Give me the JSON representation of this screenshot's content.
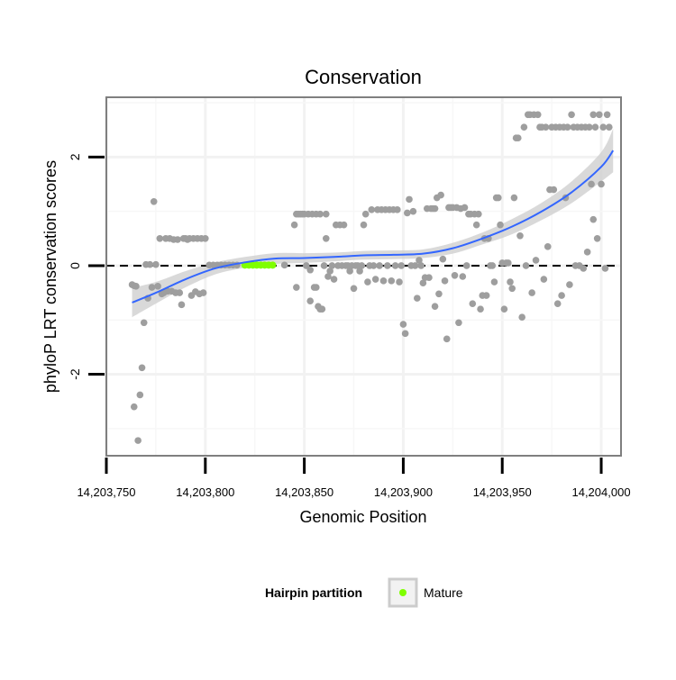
{
  "chart_data": {
    "type": "scatter",
    "title": "Conservation",
    "xlabel": "Genomic Position",
    "ylabel": "phyloP LRT conservation scores",
    "xlim": [
      14203750,
      14204010
    ],
    "ylim": [
      -3.5,
      3.1
    ],
    "x_ticks": [
      14203750,
      14203800,
      14203850,
      14203900,
      14203950,
      14204000
    ],
    "x_tick_labels": [
      "14,203,750",
      "14,203,800",
      "14,203,850",
      "14,203,900",
      "14,203,950",
      "14,204,000"
    ],
    "y_ticks": [
      -2,
      0,
      2
    ],
    "y_tick_labels": [
      "-2",
      "0",
      "2"
    ],
    "grid": true,
    "reference_line": {
      "y": 0,
      "style": "dashed"
    },
    "legend": {
      "title": "Hairpin partition",
      "position": "bottom",
      "entries": [
        {
          "label": "Mature",
          "color": "#7fff00"
        }
      ]
    },
    "colors": {
      "points": "#9e9e9e",
      "mature": "#7fff00",
      "smooth": "#3366ff",
      "ribbon": "#cccccc",
      "panel_border": "#7f7f7f"
    },
    "series": [
      {
        "name": "scores",
        "points": [
          [
            14203763,
            -0.35
          ],
          [
            14203764,
            -0.37
          ],
          [
            14203764,
            -2.6
          ],
          [
            14203765,
            -0.38
          ],
          [
            14203766,
            -3.22
          ],
          [
            14203767,
            -2.38
          ],
          [
            14203768,
            -1.88
          ],
          [
            14203769,
            -1.05
          ],
          [
            14203770,
            0.02
          ],
          [
            14203771,
            -0.6
          ],
          [
            14203772,
            0.02
          ],
          [
            14203773,
            -0.4
          ],
          [
            14203774,
            1.18
          ],
          [
            14203775,
            0.02
          ],
          [
            14203776,
            -0.38
          ],
          [
            14203777,
            0.5
          ],
          [
            14203778,
            -0.52
          ],
          [
            14203779,
            -0.5
          ],
          [
            14203780,
            0.5
          ],
          [
            14203781,
            -0.47
          ],
          [
            14203782,
            0.5
          ],
          [
            14203783,
            -0.47
          ],
          [
            14203784,
            0.48
          ],
          [
            14203785,
            -0.5
          ],
          [
            14203786,
            0.48
          ],
          [
            14203787,
            -0.5
          ],
          [
            14203788,
            -0.72
          ],
          [
            14203789,
            0.5
          ],
          [
            14203790,
            0.5
          ],
          [
            14203791,
            0.48
          ],
          [
            14203792,
            0.5
          ],
          [
            14203793,
            -0.55
          ],
          [
            14203794,
            0.5
          ],
          [
            14203795,
            -0.48
          ],
          [
            14203796,
            0.5
          ],
          [
            14203797,
            -0.52
          ],
          [
            14203798,
            0.5
          ],
          [
            14203799,
            -0.5
          ],
          [
            14203800,
            0.5
          ],
          [
            14203802,
            0.01
          ],
          [
            14203804,
            0.01
          ],
          [
            14203806,
            0.01
          ],
          [
            14203808,
            0.01
          ],
          [
            14203810,
            0.01
          ],
          [
            14203812,
            0.01
          ],
          [
            14203814,
            0.01
          ],
          [
            14203816,
            0.01
          ],
          [
            14203840,
            0.01
          ],
          [
            14203845,
            0.75
          ],
          [
            14203846,
            0.95
          ],
          [
            14203846,
            -0.4
          ],
          [
            14203847,
            0.95
          ],
          [
            14203848,
            0.95
          ],
          [
            14203849,
            0.95
          ],
          [
            14203850,
            0.95
          ],
          [
            14203851,
            0.0
          ],
          [
            14203852,
            0.95
          ],
          [
            14203853,
            -0.08
          ],
          [
            14203853,
            -0.65
          ],
          [
            14203854,
            0.95
          ],
          [
            14203855,
            -0.4
          ],
          [
            14203856,
            0.95
          ],
          [
            14203856,
            -0.4
          ],
          [
            14203857,
            -0.75
          ],
          [
            14203858,
            0.95
          ],
          [
            14203858,
            -0.8
          ],
          [
            14203859,
            -0.8
          ],
          [
            14203860,
            0.0
          ],
          [
            14203861,
            0.5
          ],
          [
            14203861,
            0.95
          ],
          [
            14203862,
            -0.2
          ],
          [
            14203863,
            -0.1
          ],
          [
            14203864,
            0.0
          ],
          [
            14203865,
            -0.25
          ],
          [
            14203866,
            0.75
          ],
          [
            14203867,
            0.0
          ],
          [
            14203868,
            0.75
          ],
          [
            14203869,
            0.0
          ],
          [
            14203870,
            0.75
          ],
          [
            14203871,
            0.0
          ],
          [
            14203872,
            0.0
          ],
          [
            14203873,
            -0.1
          ],
          [
            14203874,
            0.0
          ],
          [
            14203875,
            -0.42
          ],
          [
            14203876,
            0.0
          ],
          [
            14203877,
            0.0
          ],
          [
            14203878,
            -0.1
          ],
          [
            14203879,
            0.0
          ],
          [
            14203880,
            0.75
          ],
          [
            14203881,
            0.95
          ],
          [
            14203882,
            -0.3
          ],
          [
            14203883,
            0.0
          ],
          [
            14203884,
            1.03
          ],
          [
            14203885,
            0.0
          ],
          [
            14203886,
            -0.25
          ],
          [
            14203887,
            1.03
          ],
          [
            14203888,
            0.0
          ],
          [
            14203889,
            1.03
          ],
          [
            14203890,
            -0.28
          ],
          [
            14203891,
            1.03
          ],
          [
            14203892,
            0.0
          ],
          [
            14203893,
            1.03
          ],
          [
            14203894,
            -0.28
          ],
          [
            14203895,
            1.03
          ],
          [
            14203896,
            0.0
          ],
          [
            14203897,
            1.03
          ],
          [
            14203898,
            -0.3
          ],
          [
            14203899,
            0.0
          ],
          [
            14203900,
            -1.08
          ],
          [
            14203901,
            -1.25
          ],
          [
            14203902,
            0.97
          ],
          [
            14203903,
            1.22
          ],
          [
            14203904,
            0.0
          ],
          [
            14203905,
            1.0
          ],
          [
            14203906,
            0.0
          ],
          [
            14203907,
            -0.6
          ],
          [
            14203908,
            0.1
          ],
          [
            14203909,
            0.0
          ],
          [
            14203910,
            -0.32
          ],
          [
            14203911,
            -0.22
          ],
          [
            14203912,
            1.05
          ],
          [
            14203913,
            -0.22
          ],
          [
            14203914,
            1.05
          ],
          [
            14203915,
            1.05
          ],
          [
            14203916,
            1.05
          ],
          [
            14203916,
            -0.75
          ],
          [
            14203917,
            1.25
          ],
          [
            14203918,
            -0.52
          ],
          [
            14203919,
            1.3
          ],
          [
            14203920,
            0.12
          ],
          [
            14203921,
            -0.28
          ],
          [
            14203922,
            -1.35
          ],
          [
            14203923,
            1.07
          ],
          [
            14203924,
            1.07
          ],
          [
            14203925,
            1.07
          ],
          [
            14203926,
            -0.18
          ],
          [
            14203927,
            1.07
          ],
          [
            14203928,
            -1.05
          ],
          [
            14203929,
            1.05
          ],
          [
            14203930,
            -0.2
          ],
          [
            14203931,
            1.07
          ],
          [
            14203932,
            0.0
          ],
          [
            14203933,
            0.95
          ],
          [
            14203934,
            0.95
          ],
          [
            14203935,
            -0.7
          ],
          [
            14203936,
            0.95
          ],
          [
            14203937,
            0.75
          ],
          [
            14203938,
            0.95
          ],
          [
            14203939,
            -0.8
          ],
          [
            14203940,
            -0.55
          ],
          [
            14203941,
            0.5
          ],
          [
            14203942,
            -0.55
          ],
          [
            14203943,
            0.5
          ],
          [
            14203944,
            0.0
          ],
          [
            14203945,
            0.0
          ],
          [
            14203946,
            -0.3
          ],
          [
            14203947,
            1.25
          ],
          [
            14203948,
            1.25
          ],
          [
            14203949,
            0.75
          ],
          [
            14203950,
            0.05
          ],
          [
            14203951,
            -0.8
          ],
          [
            14203952,
            0.05
          ],
          [
            14203953,
            0.05
          ],
          [
            14203954,
            -0.3
          ],
          [
            14203955,
            -0.42
          ],
          [
            14203956,
            1.25
          ],
          [
            14203957,
            2.35
          ],
          [
            14203958,
            2.35
          ],
          [
            14203959,
            0.55
          ],
          [
            14203960,
            -0.95
          ],
          [
            14203961,
            2.55
          ],
          [
            14203962,
            0.0
          ],
          [
            14203963,
            2.78
          ],
          [
            14203964,
            2.78
          ],
          [
            14203965,
            -0.5
          ],
          [
            14203966,
            2.78
          ],
          [
            14203967,
            0.1
          ],
          [
            14203968,
            2.78
          ],
          [
            14203969,
            2.55
          ],
          [
            14203970,
            2.55
          ],
          [
            14203971,
            -0.25
          ],
          [
            14203972,
            2.55
          ],
          [
            14203973,
            0.35
          ],
          [
            14203974,
            1.4
          ],
          [
            14203975,
            2.55
          ],
          [
            14203976,
            1.4
          ],
          [
            14203977,
            2.55
          ],
          [
            14203978,
            -0.7
          ],
          [
            14203979,
            2.55
          ],
          [
            14203980,
            -0.55
          ],
          [
            14203981,
            2.55
          ],
          [
            14203982,
            1.25
          ],
          [
            14203983,
            2.55
          ],
          [
            14203984,
            -0.35
          ],
          [
            14203985,
            2.78
          ],
          [
            14203986,
            2.55
          ],
          [
            14203987,
            0.0
          ],
          [
            14203988,
            2.55
          ],
          [
            14203989,
            0.0
          ],
          [
            14203990,
            2.55
          ],
          [
            14203991,
            -0.05
          ],
          [
            14203992,
            2.55
          ],
          [
            14203993,
            0.25
          ],
          [
            14203994,
            2.55
          ],
          [
            14203995,
            1.5
          ],
          [
            14203996,
            0.85
          ],
          [
            14203996,
            2.78
          ],
          [
            14203997,
            2.55
          ],
          [
            14203998,
            0.5
          ],
          [
            14203999,
            2.78
          ],
          [
            14204000,
            1.5
          ],
          [
            14204001,
            2.55
          ],
          [
            14204002,
            -0.05
          ],
          [
            14204003,
            2.78
          ],
          [
            14204004,
            2.55
          ]
        ]
      },
      {
        "name": "Mature",
        "points": [
          [
            14203820,
            0.01
          ],
          [
            14203822,
            0.01
          ],
          [
            14203824,
            0.01
          ],
          [
            14203826,
            0.01
          ],
          [
            14203828,
            0.01
          ],
          [
            14203830,
            0.01
          ],
          [
            14203832,
            0.01
          ],
          [
            14203834,
            0.01
          ]
        ]
      }
    ],
    "smooth": {
      "method": "loess",
      "x": [
        14203763,
        14203775,
        14203790,
        14203805,
        14203820,
        14203835,
        14203850,
        14203865,
        14203880,
        14203895,
        14203910,
        14203925,
        14203940,
        14203955,
        14203970,
        14203985,
        14204000,
        14204006
      ],
      "y": [
        -0.68,
        -0.5,
        -0.25,
        -0.05,
        0.06,
        0.13,
        0.14,
        0.16,
        0.19,
        0.2,
        0.22,
        0.32,
        0.5,
        0.72,
        1.0,
        1.35,
        1.82,
        2.12
      ],
      "lo": [
        -0.95,
        -0.7,
        -0.4,
        -0.16,
        -0.04,
        0.03,
        0.05,
        0.08,
        0.11,
        0.12,
        0.14,
        0.22,
        0.39,
        0.58,
        0.84,
        1.15,
        1.55,
        1.72
      ],
      "hi": [
        -0.41,
        -0.3,
        -0.1,
        0.06,
        0.16,
        0.23,
        0.23,
        0.24,
        0.27,
        0.28,
        0.3,
        0.42,
        0.61,
        0.86,
        1.16,
        1.55,
        2.09,
        2.52
      ]
    }
  }
}
